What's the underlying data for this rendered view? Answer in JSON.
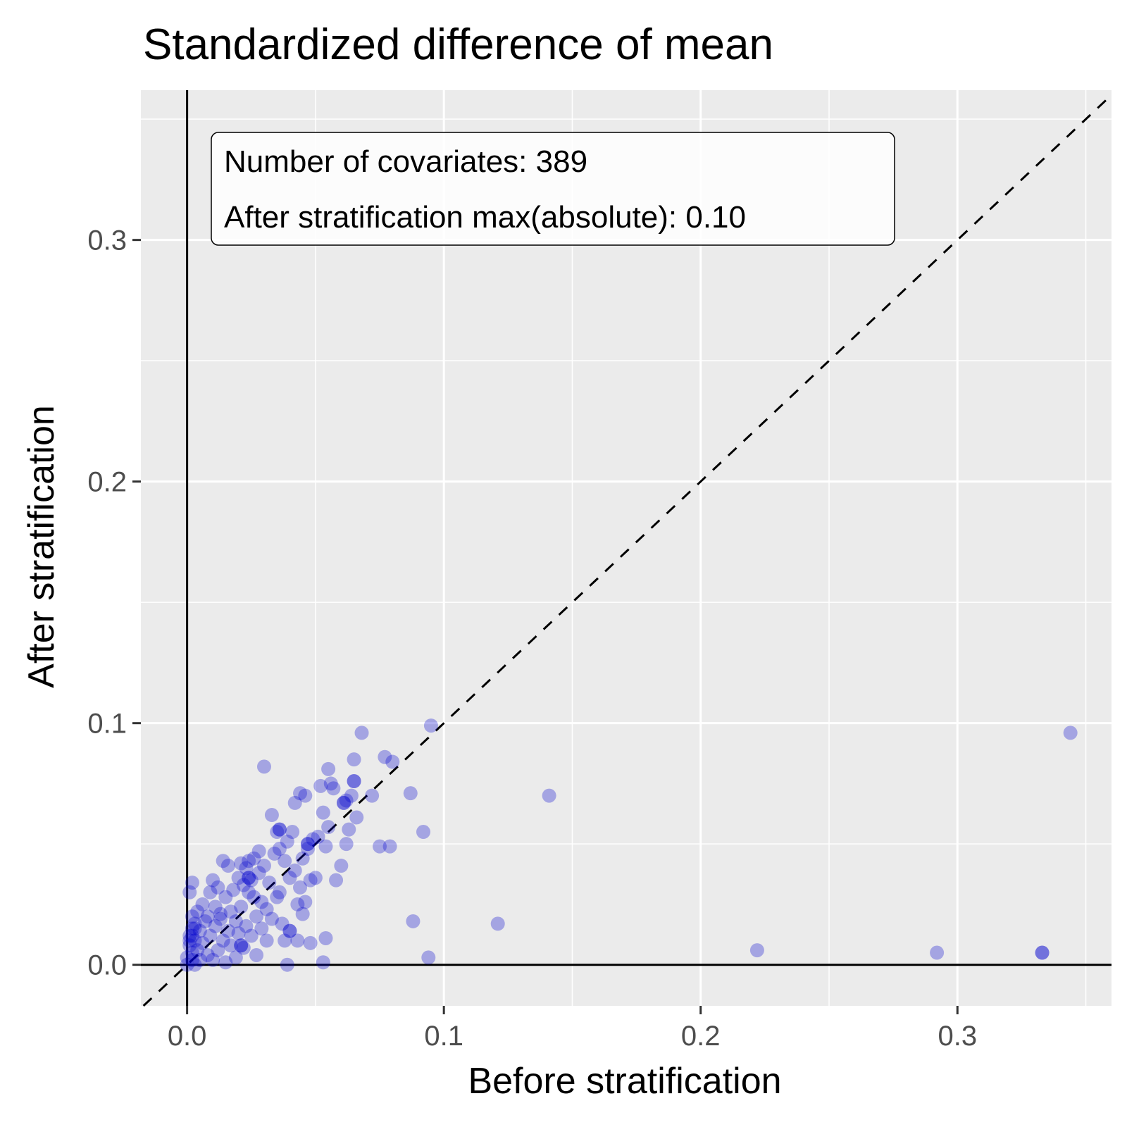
{
  "chart_data": {
    "type": "scatter",
    "title": "Standardized difference of mean",
    "xlabel": "Before stratification",
    "ylabel": "After stratification",
    "xlim": [
      -0.018,
      0.36
    ],
    "ylim": [
      -0.017,
      0.362
    ],
    "x_ticks": [
      {
        "value": 0.0,
        "label": "0.0"
      },
      {
        "value": 0.1,
        "label": "0.1"
      },
      {
        "value": 0.2,
        "label": "0.2"
      },
      {
        "value": 0.3,
        "label": "0.3"
      }
    ],
    "y_ticks": [
      {
        "value": 0.0,
        "label": "0.0"
      },
      {
        "value": 0.1,
        "label": "0.1"
      },
      {
        "value": 0.2,
        "label": "0.2"
      },
      {
        "value": 0.3,
        "label": "0.3"
      }
    ],
    "grid": true,
    "reference_lines": [
      "x=0",
      "y=0",
      "y=x (dashed)"
    ],
    "annotation": {
      "lines": [
        "Number of covariates: 389",
        "After stratification max(absolute): 0.10"
      ]
    },
    "point_color": "#0000cc",
    "background_color": "#ebebeb",
    "points": [
      [
        0.0,
        0.0
      ],
      [
        0.0,
        0.003
      ],
      [
        0.001,
        0.008
      ],
      [
        0.001,
        0.012
      ],
      [
        0.002,
        0.005
      ],
      [
        0.002,
        0.015
      ],
      [
        0.002,
        0.02
      ],
      [
        0.003,
        0.01
      ],
      [
        0.003,
        0.0
      ],
      [
        0.003,
        0.017
      ],
      [
        0.001,
        0.03
      ],
      [
        0.002,
        0.034
      ],
      [
        0.004,
        0.022
      ],
      [
        0.004,
        0.006
      ],
      [
        0.005,
        0.014
      ],
      [
        0.005,
        0.002
      ],
      [
        0.006,
        0.025
      ],
      [
        0.006,
        0.009
      ],
      [
        0.007,
        0.018
      ],
      [
        0.008,
        0.004
      ],
      [
        0.008,
        0.02
      ],
      [
        0.009,
        0.012
      ],
      [
        0.009,
        0.03
      ],
      [
        0.01,
        0.035
      ],
      [
        0.01,
        0.002
      ],
      [
        0.011,
        0.016
      ],
      [
        0.011,
        0.024
      ],
      [
        0.012,
        0.032
      ],
      [
        0.012,
        0.006
      ],
      [
        0.013,
        0.019
      ],
      [
        0.013,
        0.021
      ],
      [
        0.014,
        0.043
      ],
      [
        0.014,
        0.01
      ],
      [
        0.015,
        0.028
      ],
      [
        0.015,
        0.001
      ],
      [
        0.016,
        0.014
      ],
      [
        0.016,
        0.041
      ],
      [
        0.017,
        0.022
      ],
      [
        0.017,
        0.008
      ],
      [
        0.018,
        0.031
      ],
      [
        0.019,
        0.018
      ],
      [
        0.019,
        0.003
      ],
      [
        0.02,
        0.036
      ],
      [
        0.02,
        0.013
      ],
      [
        0.021,
        0.042
      ],
      [
        0.021,
        0.024
      ],
      [
        0.022,
        0.007
      ],
      [
        0.022,
        0.033
      ],
      [
        0.023,
        0.04
      ],
      [
        0.023,
        0.016
      ],
      [
        0.024,
        0.03
      ],
      [
        0.024,
        0.043
      ],
      [
        0.025,
        0.035
      ],
      [
        0.025,
        0.012
      ],
      [
        0.026,
        0.028
      ],
      [
        0.026,
        0.044
      ],
      [
        0.027,
        0.02
      ],
      [
        0.027,
        0.004
      ],
      [
        0.028,
        0.038
      ],
      [
        0.028,
        0.047
      ],
      [
        0.029,
        0.026
      ],
      [
        0.029,
        0.015
      ],
      [
        0.03,
        0.082
      ],
      [
        0.03,
        0.041
      ],
      [
        0.031,
        0.023
      ],
      [
        0.031,
        0.01
      ],
      [
        0.032,
        0.034
      ],
      [
        0.033,
        0.062
      ],
      [
        0.033,
        0.019
      ],
      [
        0.034,
        0.046
      ],
      [
        0.035,
        0.028
      ],
      [
        0.035,
        0.055
      ],
      [
        0.036,
        0.03
      ],
      [
        0.036,
        0.048
      ],
      [
        0.037,
        0.017
      ],
      [
        0.038,
        0.043
      ],
      [
        0.038,
        0.01
      ],
      [
        0.039,
        0.0
      ],
      [
        0.039,
        0.051
      ],
      [
        0.04,
        0.014
      ],
      [
        0.04,
        0.036
      ],
      [
        0.041,
        0.055
      ],
      [
        0.042,
        0.067
      ],
      [
        0.042,
        0.039
      ],
      [
        0.043,
        0.025
      ],
      [
        0.043,
        0.01
      ],
      [
        0.044,
        0.071
      ],
      [
        0.044,
        0.032
      ],
      [
        0.045,
        0.044
      ],
      [
        0.045,
        0.021
      ],
      [
        0.046,
        0.07
      ],
      [
        0.046,
        0.026
      ],
      [
        0.047,
        0.05
      ],
      [
        0.047,
        0.048
      ],
      [
        0.048,
        0.035
      ],
      [
        0.048,
        0.009
      ],
      [
        0.049,
        0.052
      ],
      [
        0.05,
        0.036
      ],
      [
        0.051,
        0.053
      ],
      [
        0.052,
        0.074
      ],
      [
        0.053,
        0.063
      ],
      [
        0.053,
        0.001
      ],
      [
        0.054,
        0.011
      ],
      [
        0.054,
        0.049
      ],
      [
        0.055,
        0.081
      ],
      [
        0.055,
        0.057
      ],
      [
        0.056,
        0.075
      ],
      [
        0.057,
        0.073
      ],
      [
        0.058,
        0.035
      ],
      [
        0.06,
        0.041
      ],
      [
        0.061,
        0.067
      ],
      [
        0.062,
        0.05
      ],
      [
        0.062,
        0.068
      ],
      [
        0.063,
        0.056
      ],
      [
        0.064,
        0.07
      ],
      [
        0.065,
        0.085
      ],
      [
        0.065,
        0.076
      ],
      [
        0.066,
        0.061
      ],
      [
        0.068,
        0.096
      ],
      [
        0.072,
        0.07
      ],
      [
        0.075,
        0.049
      ],
      [
        0.077,
        0.086
      ],
      [
        0.079,
        0.049
      ],
      [
        0.08,
        0.084
      ],
      [
        0.087,
        0.071
      ],
      [
        0.088,
        0.018
      ],
      [
        0.092,
        0.055
      ],
      [
        0.094,
        0.003
      ],
      [
        0.095,
        0.099
      ],
      [
        0.121,
        0.017
      ],
      [
        0.141,
        0.07
      ],
      [
        0.222,
        0.006
      ],
      [
        0.292,
        0.005
      ],
      [
        0.333,
        0.005
      ],
      [
        0.333,
        0.005
      ],
      [
        0.344,
        0.096
      ],
      [
        0.021,
        0.008
      ],
      [
        0.021,
        0.008
      ],
      [
        0.036,
        0.056
      ],
      [
        0.036,
        0.056
      ],
      [
        0.04,
        0.014
      ],
      [
        0.024,
        0.036
      ],
      [
        0.024,
        0.036
      ],
      [
        0.065,
        0.076
      ],
      [
        0.061,
        0.067
      ],
      [
        0.047,
        0.05
      ],
      [
        0.001,
        0.01
      ],
      [
        0.002,
        0.012
      ],
      [
        0.003,
        0.015
      ],
      [
        0.002,
        0.002
      ]
    ]
  }
}
